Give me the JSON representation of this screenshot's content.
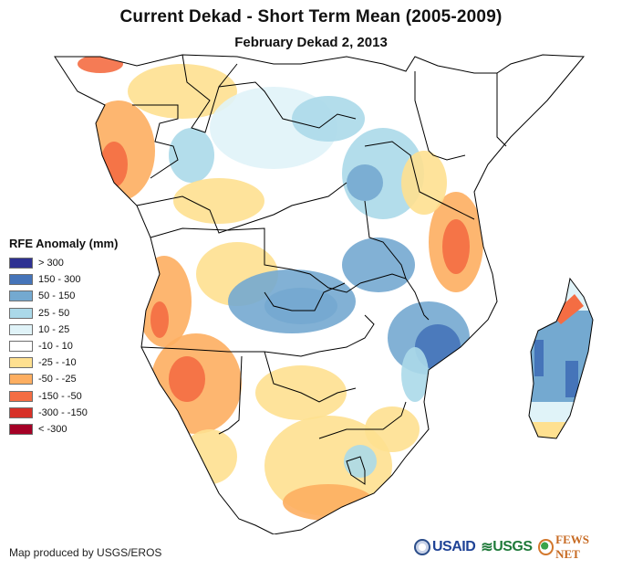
{
  "header": {
    "title": "Current Dekad - Short Term Mean (2005-2009)",
    "subtitle": "February Dekad 2, 2013"
  },
  "legend": {
    "title": "RFE Anomaly (mm)",
    "items": [
      {
        "label": "> 300",
        "color": "#2e3192"
      },
      {
        "label": "150 - 300",
        "color": "#4574b9"
      },
      {
        "label": "50 - 150",
        "color": "#74a9d0"
      },
      {
        "label": "25 - 50",
        "color": "#abd9e9"
      },
      {
        "label": "10 - 25",
        "color": "#e0f3f8"
      },
      {
        "label": "-10 - 10",
        "color": "#ffffff"
      },
      {
        "label": "-25 - -10",
        "color": "#fee090"
      },
      {
        "label": "-50 - -25",
        "color": "#fdae61"
      },
      {
        "label": "-150 - -50",
        "color": "#f46d43"
      },
      {
        "label": "-300 - -150",
        "color": "#d73027"
      },
      {
        "label": "< -300",
        "color": "#a50026"
      }
    ]
  },
  "map": {
    "region": "Southern and Central Africa",
    "regions_summary": [
      {
        "area": "Gabon / Cameroon coast",
        "category": "-50 - -25"
      },
      {
        "area": "Congo basin",
        "category": "10 - 25"
      },
      {
        "area": "Angola coast / Namibia",
        "category": "-50 - -25"
      },
      {
        "area": "Zambia / Angola interior",
        "category": "50 - 150"
      },
      {
        "area": "Mozambique central",
        "category": "150 - 300"
      },
      {
        "area": "Tanzania coast",
        "category": "-150 - -50"
      },
      {
        "area": "Madagascar",
        "category": "50 - 150"
      },
      {
        "area": "South Africa",
        "category": "-25 - -10"
      }
    ]
  },
  "footer": {
    "credit": "Map produced by USGS/EROS",
    "logos": {
      "usaid": "USAID",
      "usgs": "USGS",
      "fews": "FEWS NET"
    }
  }
}
